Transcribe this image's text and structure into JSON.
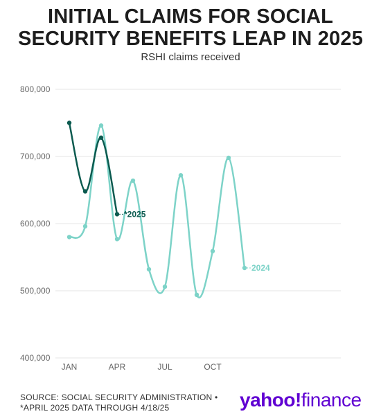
{
  "title_line1": "INITIAL CLAIMS FOR SOCIAL",
  "title_line2": "SECURITY BENEFITS LEAP IN 2025",
  "subtitle": "RSHI claims received",
  "footer_line1": "SOURCE: SOCIAL SECURITY ADMINISTRATION •",
  "footer_line2": "*APRIL 2025 DATA THROUGH 4/18/25",
  "brand_bold": "yahoo!",
  "brand_light": "finance",
  "colors": {
    "series2024": "#7dd3c8",
    "series2025": "#0b5a4f",
    "grid": "#e6e6e6",
    "brand": "#6001d2"
  },
  "chart_data": {
    "type": "line",
    "title": "INITIAL CLAIMS FOR SOCIAL SECURITY BENEFITS LEAP IN 2025",
    "subtitle": "RSHI claims received",
    "ylim": [
      400000,
      800000
    ],
    "y_ticks": [
      400000,
      500000,
      600000,
      700000,
      800000
    ],
    "y_tick_labels": [
      "400,000",
      "500,000",
      "600,000",
      "700,000",
      "800,000"
    ],
    "x_ticks": [
      1,
      4,
      7,
      10
    ],
    "x_tick_labels": [
      "JAN",
      "APR",
      "JUL",
      "OCT"
    ],
    "grid": true,
    "series": [
      {
        "name": "2024",
        "x": [
          1,
          2,
          3,
          4,
          5,
          6,
          7,
          8,
          9,
          10,
          11,
          12
        ],
        "values": [
          580000,
          596000,
          746000,
          577000,
          664000,
          532000,
          506000,
          672000,
          494000,
          559000,
          698000,
          534000
        ]
      },
      {
        "name": "*2025",
        "x": [
          1,
          2,
          3,
          4
        ],
        "values": [
          750000,
          648000,
          728000,
          614000
        ]
      }
    ]
  }
}
